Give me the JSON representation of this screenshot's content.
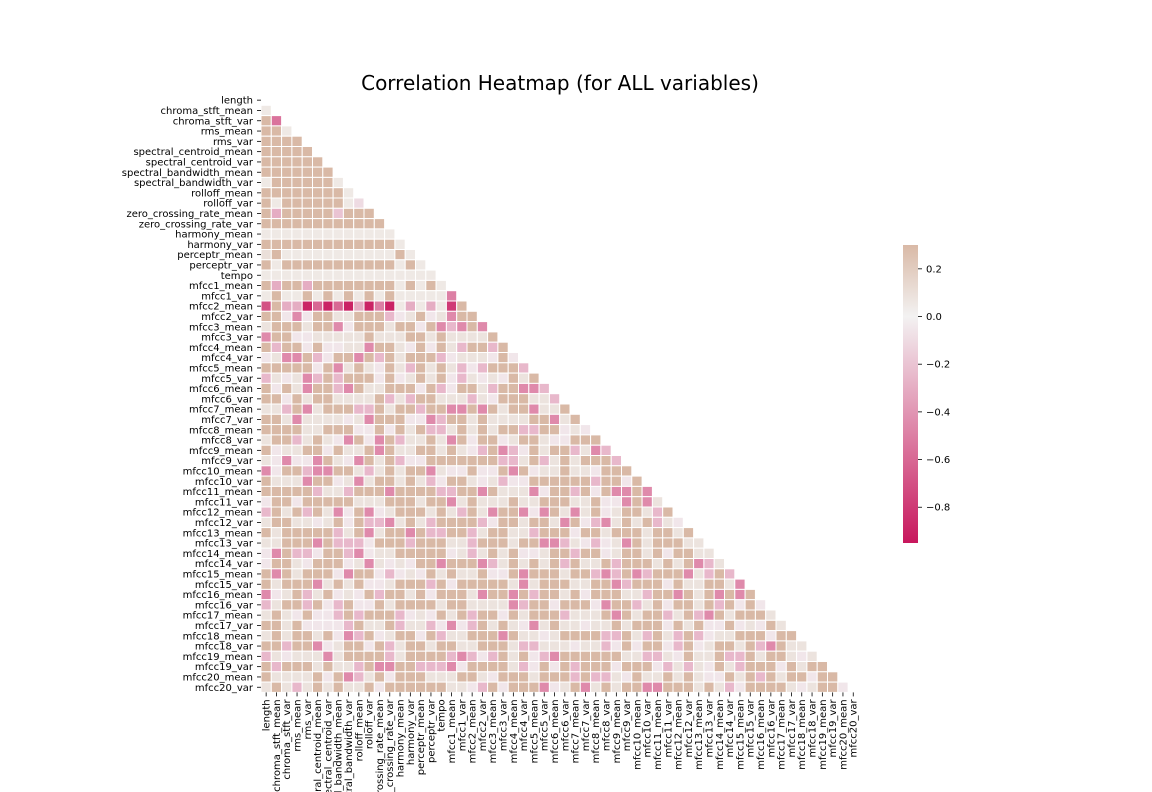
{
  "chart_data": {
    "type": "heatmap",
    "title": "Correlation Heatmap (for ALL variables)",
    "variables": [
      "length",
      "chroma_stft_mean",
      "chroma_stft_var",
      "rms_mean",
      "rms_var",
      "spectral_centroid_mean",
      "spectral_centroid_var",
      "spectral_bandwidth_mean",
      "spectral_bandwidth_var",
      "rolloff_mean",
      "rolloff_var",
      "zero_crossing_rate_mean",
      "zero_crossing_rate_var",
      "harmony_mean",
      "harmony_var",
      "perceptr_mean",
      "perceptr_var",
      "tempo",
      "mfcc1_mean",
      "mfcc1_var",
      "mfcc2_mean",
      "mfcc2_var",
      "mfcc3_mean",
      "mfcc3_var",
      "mfcc4_mean",
      "mfcc4_var",
      "mfcc5_mean",
      "mfcc5_var",
      "mfcc6_mean",
      "mfcc6_var",
      "mfcc7_mean",
      "mfcc7_var",
      "mfcc8_mean",
      "mfcc8_var",
      "mfcc9_mean",
      "mfcc9_var",
      "mfcc10_mean",
      "mfcc10_var",
      "mfcc11_mean",
      "mfcc11_var",
      "mfcc12_mean",
      "mfcc12_var",
      "mfcc13_mean",
      "mfcc13_var",
      "mfcc14_mean",
      "mfcc14_var",
      "mfcc15_mean",
      "mfcc15_var",
      "mfcc16_mean",
      "mfcc16_var",
      "mfcc17_mean",
      "mfcc17_var",
      "mfcc18_mean",
      "mfcc18_var",
      "mfcc19_mean",
      "mfcc19_var",
      "mfcc20_mean",
      "mfcc20_var"
    ],
    "x_tick_labels": [
      "length",
      "chroma_stft_mean",
      "chroma_stft_var",
      "rms_mean",
      "rms_var",
      "spectral_centroid_mean",
      "spectral_centroid_var",
      "spectral_bandwidth_mean",
      "spectral_bandwidth_var",
      "rolloff_mean",
      "rolloff_var",
      "zero_crossing_rate_mean",
      "zero_crossing_rate_var",
      "harmony_mean",
      "harmony_var",
      "perceptr_mean",
      "perceptr_var",
      "tempo",
      "mfcc1_mean",
      "mfcc1_var",
      "mfcc2_mean",
      "mfcc2_var",
      "mfcc3_mean",
      "mfcc3_var",
      "mfcc4_mean",
      "mfcc4_var",
      "mfcc5_mean",
      "mfcc5_var",
      "mfcc6_mean",
      "mfcc6_var",
      "mfcc7_mean",
      "mfcc7_var",
      "mfcc8_mean",
      "mfcc8_var",
      "mfcc9_mean",
      "mfcc9_var",
      "mfcc10_mean",
      "mfcc10_var",
      "mfcc11_mean",
      "mfcc11_var",
      "mfcc12_mean",
      "mfcc12_var",
      "mfcc13_mean",
      "mfcc13_var",
      "mfcc14_mean",
      "mfcc14_var",
      "mfcc15_mean",
      "mfcc15_var",
      "mfcc16_mean",
      "mfcc16_var",
      "mfcc17_mean",
      "mfcc17_var",
      "mfcc18_mean",
      "mfcc18_var",
      "mfcc19_mean",
      "mfcc19_var",
      "mfcc20_mean",
      "mfcc20_var"
    ],
    "mask": "upper_triangle_including_diagonal",
    "colorscale": {
      "type": "diverging",
      "low_color": "#c8175d",
      "mid_color": "#f3f2f2",
      "high_color": "#d9b9a6",
      "vmin": -0.95,
      "vmax": 0.3,
      "ticks": [
        0.2,
        0.0,
        -0.2,
        -0.4,
        -0.6,
        -0.8
      ],
      "tick_labels": [
        "0.2",
        "0.0",
        "−0.2",
        "−0.4",
        "−0.6",
        "−0.8"
      ]
    },
    "cell_separator_color": "#ffffff",
    "lower_triangle_values": [
      [],
      [
        0.05
      ],
      [
        0.3,
        -0.55
      ],
      [
        0.3,
        0.3,
        0.05
      ],
      [
        0.3,
        0.3,
        0.3,
        0.3
      ],
      [
        0.3,
        0.3,
        0.3,
        0.3,
        0.3
      ],
      [
        0.3,
        0.3,
        0.3,
        0.3,
        0.3,
        0.3
      ],
      [
        0.3,
        0.3,
        0.3,
        0.3,
        0.3,
        0.3,
        0.3
      ],
      [
        0.05,
        0.3,
        0.3,
        0.3,
        0.3,
        0.3,
        0.3,
        0.05
      ],
      [
        0.3,
        0.3,
        0.3,
        0.3,
        0.3,
        0.3,
        0.3,
        0.3,
        0.05
      ],
      [
        0.3,
        0.05,
        0.3,
        0.3,
        0.3,
        0.3,
        0.3,
        0.3,
        0.05,
        -0.1
      ],
      [
        0.3,
        -0.3,
        0.3,
        0.3,
        0.3,
        0.3,
        0.3,
        -0.2,
        0.3,
        0.3,
        0.3
      ],
      [
        0.3,
        0.3,
        0.3,
        0.3,
        0.3,
        0.3,
        0.3,
        0.3,
        0.3,
        0.3,
        0.3,
        0.3
      ],
      [
        0.05,
        0.05,
        0.05,
        0.05,
        0.05,
        0.05,
        0.05,
        0.05,
        0.05,
        0.05,
        0.05,
        0.05,
        0.05
      ],
      [
        0.3,
        0.3,
        0.3,
        0.3,
        0.3,
        0.3,
        0.3,
        0.3,
        0.3,
        0.3,
        0.3,
        0.3,
        0.3,
        0.05
      ],
      [
        0.1,
        0.3,
        0.05,
        0.05,
        0.05,
        0.05,
        0.05,
        0.05,
        0.05,
        0.05,
        0.05,
        0.05,
        0.05,
        0.3,
        0.05
      ],
      [
        0.3,
        0.05,
        0.3,
        0.3,
        0.3,
        0.3,
        0.3,
        0.3,
        0.3,
        0.3,
        0.3,
        0.3,
        0.3,
        0.05,
        0.3,
        0.05
      ],
      [
        0.05,
        0.05,
        0.05,
        0.05,
        0.05,
        0.05,
        0.05,
        0.05,
        0.05,
        0.05,
        0.05,
        0.05,
        0.05,
        0.05,
        0.05,
        0.05,
        0.05
      ],
      [
        0.3,
        -0.3,
        0.3,
        0.3,
        -0.3,
        0.3,
        0.3,
        0.3,
        0.3,
        0.3,
        0.3,
        0.3,
        0.3,
        0.05,
        0.3,
        0.05,
        0.3,
        0.05
      ],
      [
        0.05,
        0.3,
        0.05,
        0.05,
        0.3,
        0.05,
        0.3,
        0.05,
        0.3,
        0.05,
        0.3,
        0.05,
        0.3,
        0.05,
        0.05,
        0.05,
        0.05,
        0.05,
        -0.5
      ],
      [
        -0.7,
        0.3,
        -0.3,
        -0.3,
        -0.9,
        -0.6,
        -0.9,
        -0.6,
        -0.9,
        -0.3,
        -0.9,
        -0.5,
        -0.9,
        0.05,
        -0.3,
        0.05,
        -0.3,
        0.05,
        -0.8,
        0.3
      ]
    ]
  }
}
